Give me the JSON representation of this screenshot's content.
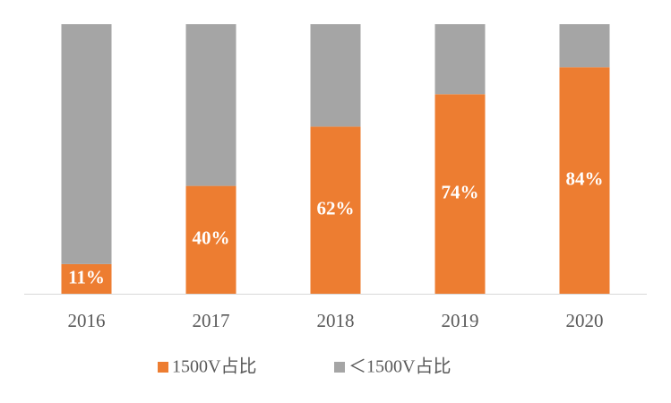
{
  "chart_data": {
    "type": "stacked_bar",
    "categories": [
      "2016",
      "2017",
      "2018",
      "2019",
      "2020"
    ],
    "series": [
      {
        "name": "1500V占比",
        "color": "#ED7D31",
        "values": [
          11,
          40,
          62,
          74,
          84
        ],
        "value_labels": [
          "11%",
          "40%",
          "62%",
          "74%",
          "84%"
        ]
      },
      {
        "name": "＜1500V占比",
        "color": "#A5A5A5",
        "values": [
          89,
          60,
          38,
          26,
          16
        ]
      }
    ]
  }
}
